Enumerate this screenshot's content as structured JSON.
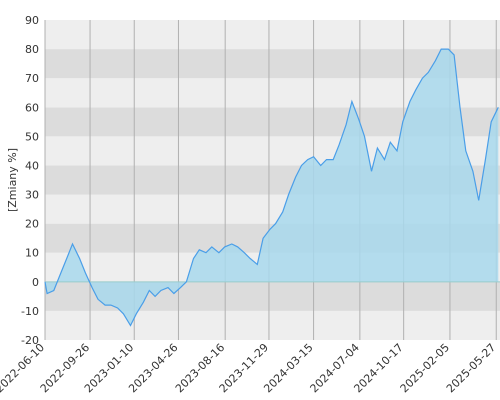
{
  "chart_data": {
    "type": "area",
    "y_label": "[Zmiany %]",
    "x": [
      "2022-06-10",
      "2022-06-15",
      "2022-07-01",
      "2022-07-15",
      "2022-08-01",
      "2022-08-15",
      "2022-09-01",
      "2022-09-15",
      "2022-10-01",
      "2022-10-15",
      "2022-11-01",
      "2022-11-15",
      "2022-12-01",
      "2022-12-15",
      "2023-01-01",
      "2023-01-15",
      "2023-02-01",
      "2023-02-15",
      "2023-03-01",
      "2023-03-15",
      "2023-04-01",
      "2023-04-15",
      "2023-05-01",
      "2023-05-15",
      "2023-06-01",
      "2023-06-15",
      "2023-07-01",
      "2023-07-15",
      "2023-08-01",
      "2023-08-15",
      "2023-09-01",
      "2023-09-15",
      "2023-10-01",
      "2023-10-15",
      "2023-11-01",
      "2023-11-15",
      "2023-12-01",
      "2023-12-15",
      "2024-01-01",
      "2024-01-15",
      "2024-02-01",
      "2024-02-15",
      "2024-03-01",
      "2024-03-15",
      "2024-04-01",
      "2024-04-15",
      "2024-05-01",
      "2024-05-15",
      "2024-06-01",
      "2024-06-15",
      "2024-07-01",
      "2024-07-15",
      "2024-08-01",
      "2024-08-15",
      "2024-09-01",
      "2024-09-15",
      "2024-10-01",
      "2024-10-15",
      "2024-11-01",
      "2024-11-15",
      "2024-12-01",
      "2024-12-15",
      "2025-01-01",
      "2025-01-15",
      "2025-02-01",
      "2025-02-15",
      "2025-03-01",
      "2025-03-15",
      "2025-04-01",
      "2025-04-15",
      "2025-05-01",
      "2025-05-15",
      "2025-06-01"
    ],
    "series": [
      {
        "color": "#4a9ee8",
        "fill": "#a8d8ec",
        "values": [
          0,
          -4,
          -3,
          2,
          8,
          13,
          8,
          3,
          -2,
          -6,
          -8,
          -8,
          -9,
          -11,
          -15,
          -11,
          -7,
          -3,
          -5,
          -3,
          -2,
          -4,
          -2,
          0,
          8,
          11,
          10,
          12,
          10,
          12,
          13,
          12,
          10,
          8,
          6,
          15,
          18,
          20,
          24,
          30,
          36,
          40,
          42,
          43,
          40,
          42,
          42,
          47,
          54,
          62,
          56,
          50,
          38,
          46,
          42,
          48,
          45,
          55,
          62,
          66,
          70,
          72,
          76,
          80,
          80,
          78,
          60,
          45,
          38,
          28,
          42,
          55,
          60
        ]
      }
    ],
    "xlim": [
      "2022-06-10",
      "2025-06-05"
    ],
    "xticks": [
      "2022-06-10",
      "2022-09-26",
      "2023-01-10",
      "2023-04-26",
      "2023-08-16",
      "2023-11-29",
      "2024-03-15",
      "2024-07-04",
      "2024-10-17",
      "2025-02-05",
      "2025-05-27"
    ],
    "ylim": [
      -20,
      90
    ],
    "yticks": [
      -20,
      -10,
      0,
      10,
      20,
      30,
      40,
      50,
      60,
      70,
      80,
      90
    ],
    "grid": true
  }
}
